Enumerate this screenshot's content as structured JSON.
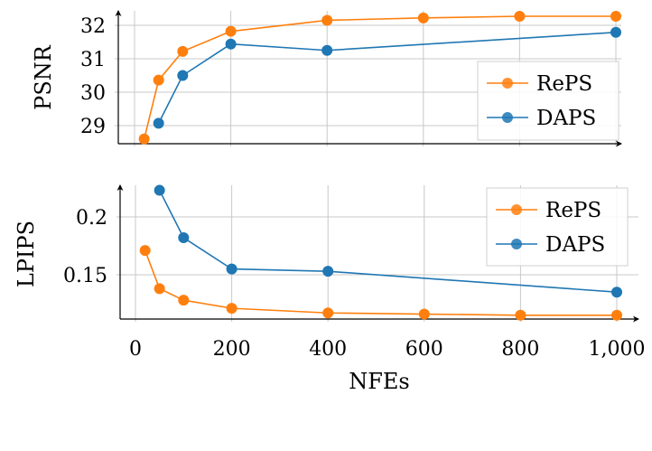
{
  "chart_data": [
    {
      "type": "line",
      "ylabel": "PSNR",
      "xlabel": "",
      "xlim": [
        -30,
        1020
      ],
      "ylim": [
        28.4,
        32.45
      ],
      "yticks": [
        29,
        30,
        31,
        32
      ],
      "ytick_labels": [
        "29",
        "30",
        "31",
        "32"
      ],
      "xticks": [
        0,
        200,
        400,
        600,
        800,
        1000
      ],
      "grid": true,
      "legend": "right",
      "series": [
        {
          "name": "RePS",
          "color": "#ff7f0e",
          "x": [
            20,
            50,
            100,
            200,
            400,
            600,
            800,
            1000
          ],
          "y": [
            28.6,
            30.36,
            31.22,
            31.82,
            32.15,
            32.22,
            32.27,
            32.27
          ]
        },
        {
          "name": "DAPS",
          "color": "#1f77b4",
          "x": [
            50,
            100,
            200,
            400,
            1000
          ],
          "y": [
            29.07,
            30.5,
            31.44,
            31.25,
            31.79
          ]
        }
      ]
    },
    {
      "type": "line",
      "ylabel": "LPIPS",
      "xlabel": "NFEs",
      "xlim": [
        -30,
        1020
      ],
      "ylim": [
        0.11,
        0.226
      ],
      "yticks": [
        0.15,
        0.2
      ],
      "ytick_labels": [
        "0.15",
        "0.2"
      ],
      "xticks": [
        0,
        200,
        400,
        600,
        800,
        1000
      ],
      "xtick_labels": [
        "0",
        "200",
        "400",
        "600",
        "800",
        "1,000"
      ],
      "grid": true,
      "legend": "top-right",
      "series": [
        {
          "name": "RePS",
          "color": "#ff7f0e",
          "x": [
            20,
            50,
            100,
            200,
            400,
            600,
            800,
            1000
          ],
          "y": [
            0.171,
            0.138,
            0.128,
            0.121,
            0.117,
            0.116,
            0.115,
            0.115
          ]
        },
        {
          "name": "DAPS",
          "color": "#1f77b4",
          "x": [
            50,
            100,
            200,
            400,
            1000
          ],
          "y": [
            0.223,
            0.182,
            0.155,
            0.153,
            0.135
          ]
        }
      ]
    }
  ]
}
